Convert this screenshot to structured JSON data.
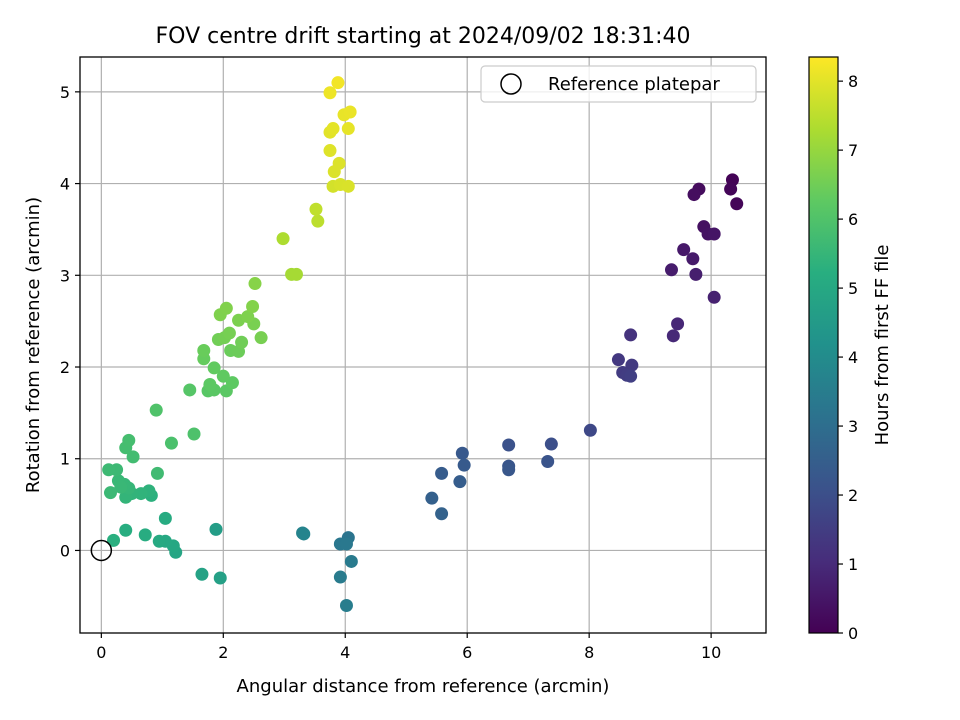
{
  "figure": {
    "title": "FOV centre drift starting at 2024/09/02 18:31:40"
  },
  "chart_data": {
    "type": "scatter",
    "title": "FOV centre drift starting at 2024/09/02 18:31:40",
    "xlabel": "Angular distance from reference (arcmin)",
    "ylabel": "Rotation from reference (arcmin)",
    "xlim": [
      -0.35,
      10.9
    ],
    "ylim": [
      -0.9,
      5.38
    ],
    "xticks": [
      0,
      2,
      4,
      6,
      8,
      10
    ],
    "xtick_labels": [
      "0",
      "2",
      "4",
      "6",
      "8",
      "10"
    ],
    "yticks": [
      0,
      1,
      2,
      3,
      4,
      5
    ],
    "ytick_labels": [
      "0",
      "1",
      "2",
      "3",
      "4",
      "5"
    ],
    "grid": true,
    "colormap": "viridis",
    "colorbar": {
      "label": "Hours from first FF file",
      "range": [
        0,
        8.35
      ],
      "ticks": [
        0,
        1,
        2,
        3,
        4,
        5,
        6,
        7,
        8
      ],
      "tick_labels": [
        "0",
        "1",
        "2",
        "3",
        "4",
        "5",
        "6",
        "7",
        "8"
      ]
    },
    "legend": {
      "position": "top-right",
      "entries": [
        {
          "label": "Reference platepar",
          "marker": "open-circle"
        }
      ]
    },
    "reference_point": {
      "x": 0,
      "y": 0
    },
    "points": [
      {
        "x": 10.35,
        "y": 4.04,
        "c": 0.05
      },
      {
        "x": 10.32,
        "y": 3.94,
        "c": 0.1
      },
      {
        "x": 10.42,
        "y": 3.78,
        "c": 0.12
      },
      {
        "x": 9.8,
        "y": 3.94,
        "c": 0.25
      },
      {
        "x": 9.72,
        "y": 3.88,
        "c": 0.3
      },
      {
        "x": 9.88,
        "y": 3.53,
        "c": 0.35
      },
      {
        "x": 9.95,
        "y": 3.45,
        "c": 0.4
      },
      {
        "x": 10.05,
        "y": 3.45,
        "c": 0.45
      },
      {
        "x": 9.55,
        "y": 3.28,
        "c": 0.55
      },
      {
        "x": 9.7,
        "y": 3.18,
        "c": 0.6
      },
      {
        "x": 9.35,
        "y": 3.06,
        "c": 0.65
      },
      {
        "x": 9.75,
        "y": 3.01,
        "c": 0.7
      },
      {
        "x": 10.05,
        "y": 2.76,
        "c": 0.75
      },
      {
        "x": 9.45,
        "y": 2.47,
        "c": 0.9
      },
      {
        "x": 9.38,
        "y": 2.34,
        "c": 0.95
      },
      {
        "x": 8.68,
        "y": 2.35,
        "c": 1.2
      },
      {
        "x": 8.48,
        "y": 2.08,
        "c": 1.35
      },
      {
        "x": 8.7,
        "y": 2.02,
        "c": 1.4
      },
      {
        "x": 8.55,
        "y": 1.94,
        "c": 1.45
      },
      {
        "x": 8.62,
        "y": 1.91,
        "c": 1.5
      },
      {
        "x": 8.68,
        "y": 1.9,
        "c": 1.55
      },
      {
        "x": 8.02,
        "y": 1.31,
        "c": 1.8
      },
      {
        "x": 7.38,
        "y": 1.16,
        "c": 2.0
      },
      {
        "x": 6.68,
        "y": 1.15,
        "c": 2.1
      },
      {
        "x": 7.32,
        "y": 0.97,
        "c": 2.15
      },
      {
        "x": 6.68,
        "y": 0.92,
        "c": 2.2
      },
      {
        "x": 6.68,
        "y": 0.88,
        "c": 2.25
      },
      {
        "x": 5.92,
        "y": 1.06,
        "c": 2.3
      },
      {
        "x": 5.95,
        "y": 0.93,
        "c": 2.35
      },
      {
        "x": 5.58,
        "y": 0.84,
        "c": 2.4
      },
      {
        "x": 5.88,
        "y": 0.75,
        "c": 2.45
      },
      {
        "x": 5.42,
        "y": 0.57,
        "c": 2.55
      },
      {
        "x": 5.58,
        "y": 0.4,
        "c": 2.6
      },
      {
        "x": 4.05,
        "y": 0.14,
        "c": 3.2
      },
      {
        "x": 3.92,
        "y": 0.07,
        "c": 3.3
      },
      {
        "x": 4.02,
        "y": 0.07,
        "c": 3.35
      },
      {
        "x": 4.1,
        "y": -0.12,
        "c": 3.4
      },
      {
        "x": 3.92,
        "y": -0.29,
        "c": 3.45
      },
      {
        "x": 4.02,
        "y": -0.6,
        "c": 3.5
      },
      {
        "x": 3.3,
        "y": 0.19,
        "c": 3.7
      },
      {
        "x": 3.32,
        "y": 0.18,
        "c": 3.75
      },
      {
        "x": 1.88,
        "y": 0.23,
        "c": 4.6
      },
      {
        "x": 1.95,
        "y": -0.3,
        "c": 4.7
      },
      {
        "x": 1.65,
        "y": -0.26,
        "c": 4.8
      },
      {
        "x": 1.22,
        "y": -0.02,
        "c": 4.9
      },
      {
        "x": 1.18,
        "y": 0.05,
        "c": 4.95
      },
      {
        "x": 1.05,
        "y": 0.1,
        "c": 5.0
      },
      {
        "x": 0.95,
        "y": 0.1,
        "c": 5.05
      },
      {
        "x": 1.05,
        "y": 0.35,
        "c": 5.1
      },
      {
        "x": 0.72,
        "y": 0.17,
        "c": 5.15
      },
      {
        "x": 0.4,
        "y": 0.22,
        "c": 5.2
      },
      {
        "x": 0.2,
        "y": 0.11,
        "c": 5.25
      },
      {
        "x": 0.82,
        "y": 0.6,
        "c": 5.3
      },
      {
        "x": 0.78,
        "y": 0.65,
        "c": 5.35
      },
      {
        "x": 0.65,
        "y": 0.62,
        "c": 5.4
      },
      {
        "x": 0.5,
        "y": 0.62,
        "c": 5.42
      },
      {
        "x": 0.4,
        "y": 0.58,
        "c": 5.45
      },
      {
        "x": 0.45,
        "y": 0.68,
        "c": 5.5
      },
      {
        "x": 0.38,
        "y": 0.72,
        "c": 5.52
      },
      {
        "x": 0.28,
        "y": 0.76,
        "c": 5.55
      },
      {
        "x": 0.32,
        "y": 0.69,
        "c": 5.57
      },
      {
        "x": 0.15,
        "y": 0.63,
        "c": 5.6
      },
      {
        "x": 0.25,
        "y": 0.88,
        "c": 5.62
      },
      {
        "x": 0.12,
        "y": 0.88,
        "c": 5.65
      },
      {
        "x": 0.92,
        "y": 0.84,
        "c": 5.7
      },
      {
        "x": 0.52,
        "y": 1.02,
        "c": 5.75
      },
      {
        "x": 0.4,
        "y": 1.12,
        "c": 5.78
      },
      {
        "x": 0.45,
        "y": 1.2,
        "c": 5.8
      },
      {
        "x": 1.15,
        "y": 1.17,
        "c": 5.9
      },
      {
        "x": 1.52,
        "y": 1.27,
        "c": 5.95
      },
      {
        "x": 0.9,
        "y": 1.53,
        "c": 6.0
      },
      {
        "x": 1.45,
        "y": 1.75,
        "c": 6.1
      },
      {
        "x": 1.75,
        "y": 1.74,
        "c": 6.15
      },
      {
        "x": 1.85,
        "y": 1.75,
        "c": 6.18
      },
      {
        "x": 2.05,
        "y": 1.74,
        "c": 6.2
      },
      {
        "x": 1.78,
        "y": 1.81,
        "c": 6.22
      },
      {
        "x": 2.15,
        "y": 1.83,
        "c": 6.25
      },
      {
        "x": 2.0,
        "y": 1.9,
        "c": 6.28
      },
      {
        "x": 1.85,
        "y": 1.99,
        "c": 6.3
      },
      {
        "x": 1.68,
        "y": 2.09,
        "c": 6.35
      },
      {
        "x": 1.68,
        "y": 2.18,
        "c": 6.4
      },
      {
        "x": 2.12,
        "y": 2.18,
        "c": 6.42
      },
      {
        "x": 2.25,
        "y": 2.17,
        "c": 6.45
      },
      {
        "x": 2.3,
        "y": 2.27,
        "c": 6.5
      },
      {
        "x": 1.92,
        "y": 2.3,
        "c": 6.52
      },
      {
        "x": 2.02,
        "y": 2.32,
        "c": 6.55
      },
      {
        "x": 2.1,
        "y": 2.37,
        "c": 6.58
      },
      {
        "x": 2.62,
        "y": 2.32,
        "c": 6.6
      },
      {
        "x": 2.5,
        "y": 2.47,
        "c": 6.62
      },
      {
        "x": 2.25,
        "y": 2.51,
        "c": 6.65
      },
      {
        "x": 2.4,
        "y": 2.55,
        "c": 6.68
      },
      {
        "x": 1.95,
        "y": 2.57,
        "c": 6.7
      },
      {
        "x": 2.05,
        "y": 2.64,
        "c": 6.72
      },
      {
        "x": 2.48,
        "y": 2.66,
        "c": 6.75
      },
      {
        "x": 2.52,
        "y": 2.91,
        "c": 6.8
      },
      {
        "x": 3.12,
        "y": 3.01,
        "c": 7.2
      },
      {
        "x": 3.2,
        "y": 3.01,
        "c": 7.22
      },
      {
        "x": 2.98,
        "y": 3.4,
        "c": 7.3
      },
      {
        "x": 3.55,
        "y": 3.59,
        "c": 7.5
      },
      {
        "x": 3.52,
        "y": 3.72,
        "c": 7.55
      },
      {
        "x": 3.8,
        "y": 3.97,
        "c": 7.8
      },
      {
        "x": 3.92,
        "y": 3.99,
        "c": 7.85
      },
      {
        "x": 4.05,
        "y": 3.97,
        "c": 7.88
      },
      {
        "x": 3.82,
        "y": 4.13,
        "c": 7.9
      },
      {
        "x": 3.9,
        "y": 4.22,
        "c": 7.92
      },
      {
        "x": 3.75,
        "y": 4.36,
        "c": 7.95
      },
      {
        "x": 3.75,
        "y": 4.56,
        "c": 8.0
      },
      {
        "x": 3.8,
        "y": 4.6,
        "c": 8.02
      },
      {
        "x": 4.05,
        "y": 4.6,
        "c": 8.05
      },
      {
        "x": 3.98,
        "y": 4.75,
        "c": 8.08
      },
      {
        "x": 4.08,
        "y": 4.78,
        "c": 8.1
      },
      {
        "x": 3.75,
        "y": 4.99,
        "c": 8.15
      },
      {
        "x": 3.88,
        "y": 5.1,
        "c": 8.2
      }
    ]
  }
}
